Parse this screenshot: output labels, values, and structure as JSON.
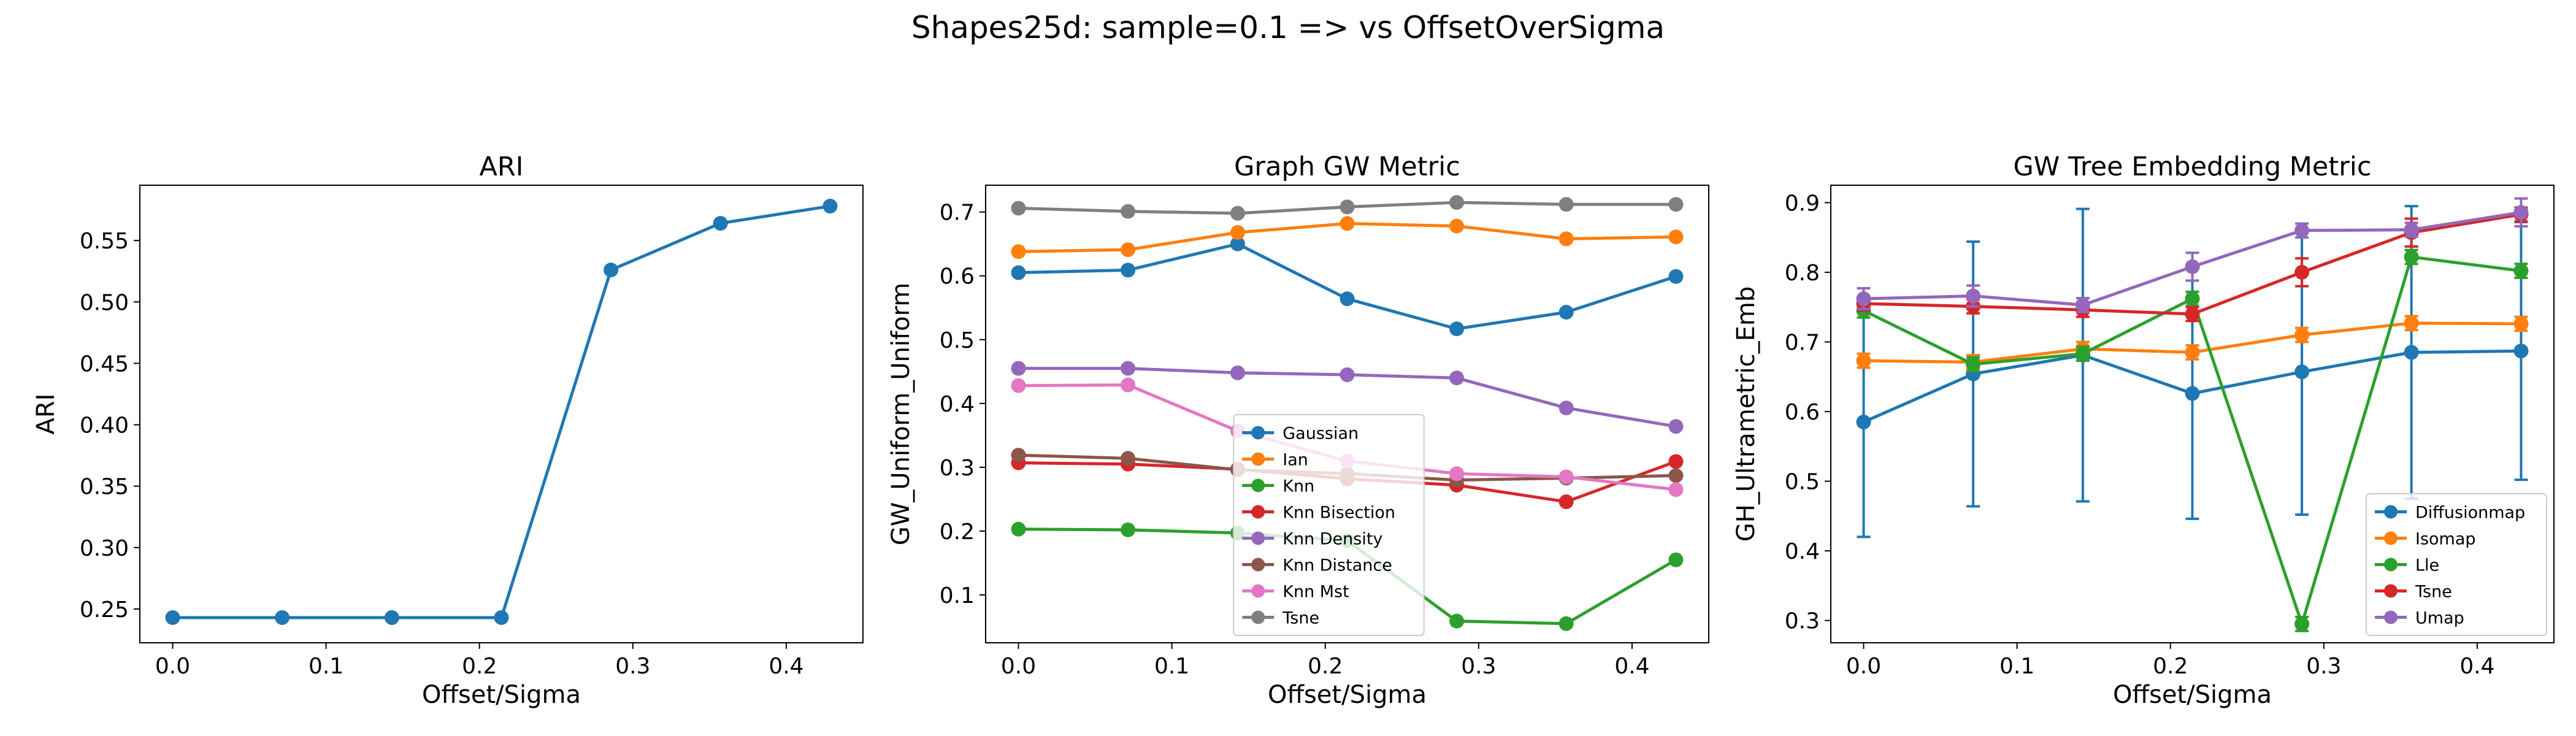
{
  "suptitle": "Shapes25d: sample=0.1 => vs OffsetOverSigma",
  "colors": [
    "#1f77b4",
    "#ff7f0e",
    "#2ca02c",
    "#d62728",
    "#9467bd",
    "#8c564b",
    "#e377c2",
    "#7f7f7f"
  ],
  "chart_data": [
    {
      "type": "line",
      "title": "ARI",
      "xlabel": "Offset/Sigma",
      "ylabel": "ARI",
      "xlim": [
        -0.0214,
        0.45
      ],
      "ylim": [
        0.2225,
        0.595
      ],
      "xticks": [
        0.0,
        0.1,
        0.2,
        0.3,
        0.4
      ],
      "yticks": [
        0.25,
        0.3,
        0.35,
        0.4,
        0.45,
        0.5,
        0.55
      ],
      "x": [
        0.0,
        0.0714,
        0.1429,
        0.2143,
        0.2857,
        0.3571,
        0.4286
      ],
      "legend": null,
      "series": [
        {
          "values": [
            0.243,
            0.243,
            0.243,
            0.243,
            0.526,
            0.564,
            0.578
          ]
        }
      ]
    },
    {
      "type": "line",
      "title": "Graph GW Metric",
      "xlabel": "Offset/Sigma",
      "ylabel": "GW_Uniform_Uniform",
      "xlim": [
        -0.0214,
        0.45
      ],
      "ylim": [
        0.025,
        0.742
      ],
      "xticks": [
        0.0,
        0.1,
        0.2,
        0.3,
        0.4
      ],
      "yticks": [
        0.1,
        0.2,
        0.3,
        0.4,
        0.5,
        0.6,
        0.7
      ],
      "x": [
        0.0,
        0.0714,
        0.1429,
        0.2143,
        0.2857,
        0.3571,
        0.4286
      ],
      "legend": "lower-center",
      "series": [
        {
          "name": "Gaussian",
          "values": [
            0.605,
            0.609,
            0.65,
            0.564,
            0.517,
            0.543,
            0.599
          ]
        },
        {
          "name": "Ian",
          "values": [
            0.638,
            0.641,
            0.668,
            0.682,
            0.678,
            0.658,
            0.661
          ]
        },
        {
          "name": "Knn",
          "values": [
            0.203,
            0.202,
            0.197,
            0.185,
            0.059,
            0.055,
            0.155
          ]
        },
        {
          "name": "Knn Bisection",
          "values": [
            0.307,
            0.305,
            0.297,
            0.282,
            0.272,
            0.246,
            0.309
          ]
        },
        {
          "name": "Knn Density",
          "values": [
            0.455,
            0.455,
            0.448,
            0.445,
            0.44,
            0.393,
            0.364
          ]
        },
        {
          "name": "Knn Distance",
          "values": [
            0.319,
            0.314,
            0.296,
            0.29,
            0.28,
            0.283,
            0.287
          ]
        },
        {
          "name": "Knn Mst",
          "values": [
            0.428,
            0.429,
            0.357,
            0.31,
            0.29,
            0.285,
            0.265
          ]
        },
        {
          "name": "Tsne",
          "values": [
            0.706,
            0.701,
            0.698,
            0.708,
            0.715,
            0.712,
            0.712
          ]
        }
      ]
    },
    {
      "type": "line",
      "title": "GW Tree Embedding Metric",
      "xlabel": "Offset/Sigma",
      "ylabel": "GH_Ultrametric_Emb",
      "xlim": [
        -0.0214,
        0.45
      ],
      "ylim": [
        0.268,
        0.925
      ],
      "xticks": [
        0.0,
        0.1,
        0.2,
        0.3,
        0.4
      ],
      "yticks": [
        0.3,
        0.4,
        0.5,
        0.6,
        0.7,
        0.8,
        0.9
      ],
      "x": [
        0.0,
        0.0714,
        0.1429,
        0.2143,
        0.2857,
        0.3571,
        0.4286
      ],
      "legend": "lower-right",
      "series": [
        {
          "name": "Diffusionmap",
          "values": [
            0.585,
            0.654,
            0.681,
            0.626,
            0.657,
            0.685,
            0.687
          ],
          "errors": [
            0.165,
            0.19,
            0.21,
            0.18,
            0.205,
            0.21,
            0.185
          ]
        },
        {
          "name": "Isomap",
          "values": [
            0.673,
            0.671,
            0.69,
            0.685,
            0.71,
            0.727,
            0.726
          ],
          "errors": [
            0.01,
            0.01,
            0.01,
            0.01,
            0.01,
            0.01,
            0.01
          ]
        },
        {
          "name": "Lle",
          "values": [
            0.745,
            0.668,
            0.683,
            0.762,
            0.295,
            0.822,
            0.802
          ],
          "errors": [
            0.01,
            0.01,
            0.01,
            0.01,
            0.01,
            0.01,
            0.01
          ]
        },
        {
          "name": "Tsne",
          "values": [
            0.755,
            0.751,
            0.746,
            0.74,
            0.8,
            0.857,
            0.883
          ],
          "errors": [
            0.01,
            0.01,
            0.01,
            0.01,
            0.02,
            0.02,
            0.01
          ]
        },
        {
          "name": "Umap",
          "values": [
            0.762,
            0.766,
            0.753,
            0.808,
            0.86,
            0.861,
            0.886
          ],
          "errors": [
            0.015,
            0.015,
            0.01,
            0.02,
            0.01,
            0.01,
            0.02
          ]
        }
      ]
    }
  ]
}
